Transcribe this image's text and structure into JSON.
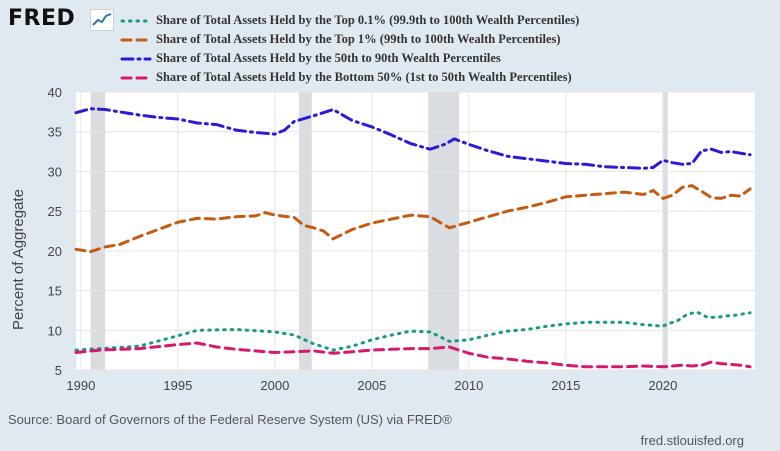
{
  "logo": {
    "text": "FRED",
    "icon": "trend-line-icon"
  },
  "source_text": "Source: Board of Governors of the Federal Reserve System (US) via FRED®",
  "site_text": "fred.stlouisfed.org",
  "chart_data": {
    "type": "line",
    "ylabel": "Percent of Aggregate",
    "xlabel": "",
    "xlim": [
      1989.75,
      2024.75
    ],
    "ylim": [
      5,
      40
    ],
    "yticks": [
      5,
      10,
      15,
      20,
      25,
      30,
      35,
      40
    ],
    "xticks": [
      1990,
      1995,
      2000,
      2005,
      2010,
      2015,
      2020
    ],
    "grid": true,
    "legend_position": "top",
    "recessions": [
      [
        1990.5,
        1991.25
      ],
      [
        2001.25,
        2001.9
      ],
      [
        2007.9,
        2009.5
      ],
      [
        2020.0,
        2020.25
      ]
    ],
    "series": [
      {
        "name": "Share of Total Assets Held by the Top 0.1% (99.9th to 100th Wealth Percentiles)",
        "color": "#1a9a85",
        "style": "dotted",
        "points": [
          [
            1989.75,
            7.5
          ],
          [
            1991,
            7.7
          ],
          [
            1993,
            8.0
          ],
          [
            1995,
            9.3
          ],
          [
            1996,
            10.0
          ],
          [
            1998,
            10.1
          ],
          [
            2000,
            9.8
          ],
          [
            2001,
            9.4
          ],
          [
            2002,
            8.3
          ],
          [
            2003,
            7.5
          ],
          [
            2004,
            8.0
          ],
          [
            2005,
            8.8
          ],
          [
            2006,
            9.4
          ],
          [
            2007,
            9.9
          ],
          [
            2008,
            9.8
          ],
          [
            2009,
            8.6
          ],
          [
            2010,
            8.8
          ],
          [
            2011,
            9.4
          ],
          [
            2012,
            9.9
          ],
          [
            2013,
            10.1
          ],
          [
            2014,
            10.5
          ],
          [
            2015,
            10.8
          ],
          [
            2016,
            11.0
          ],
          [
            2017,
            11.0
          ],
          [
            2018,
            11.0
          ],
          [
            2019,
            10.7
          ],
          [
            2020,
            10.5
          ],
          [
            2020.25,
            10.8
          ],
          [
            2020.75,
            11.2
          ],
          [
            2021.25,
            12.0
          ],
          [
            2021.75,
            12.3
          ],
          [
            2022.25,
            11.7
          ],
          [
            2022.75,
            11.6
          ],
          [
            2023.25,
            11.8
          ],
          [
            2023.75,
            11.9
          ],
          [
            2024.5,
            12.2
          ]
        ]
      },
      {
        "name": "Share of Total Assets Held by the Top 1% (99th to 100th Wealth Percentiles)",
        "color": "#c55a11",
        "style": "dashed",
        "points": [
          [
            1989.75,
            20.2
          ],
          [
            1990.5,
            19.9
          ],
          [
            1991.25,
            20.5
          ],
          [
            1992,
            20.8
          ],
          [
            1993,
            21.8
          ],
          [
            1994,
            22.7
          ],
          [
            1995,
            23.6
          ],
          [
            1996,
            24.1
          ],
          [
            1997,
            24.0
          ],
          [
            1998,
            24.3
          ],
          [
            1999,
            24.4
          ],
          [
            1999.5,
            24.8
          ],
          [
            2000,
            24.5
          ],
          [
            2001,
            24.2
          ],
          [
            2001.5,
            23.2
          ],
          [
            2002,
            22.9
          ],
          [
            2002.5,
            22.5
          ],
          [
            2003,
            21.5
          ],
          [
            2004,
            22.7
          ],
          [
            2005,
            23.5
          ],
          [
            2006,
            24.0
          ],
          [
            2007,
            24.5
          ],
          [
            2008,
            24.3
          ],
          [
            2008.5,
            23.6
          ],
          [
            2009,
            22.9
          ],
          [
            2010,
            23.6
          ],
          [
            2011,
            24.3
          ],
          [
            2012,
            25.0
          ],
          [
            2013,
            25.5
          ],
          [
            2014,
            26.1
          ],
          [
            2015,
            26.8
          ],
          [
            2016,
            27.0
          ],
          [
            2017,
            27.2
          ],
          [
            2018,
            27.4
          ],
          [
            2019,
            27.1
          ],
          [
            2019.5,
            27.6
          ],
          [
            2020,
            26.6
          ],
          [
            2020.5,
            27.0
          ],
          [
            2021,
            28.0
          ],
          [
            2021.5,
            28.2
          ],
          [
            2022,
            27.5
          ],
          [
            2022.5,
            26.7
          ],
          [
            2023,
            26.6
          ],
          [
            2023.5,
            27.0
          ],
          [
            2024,
            26.9
          ],
          [
            2024.5,
            27.8
          ]
        ]
      },
      {
        "name": "Share of Total Assets Held by the 50th to 90th Wealth Percentiles",
        "color": "#2a1bd6",
        "style": "dashdot",
        "points": [
          [
            1989.75,
            37.4
          ],
          [
            1990.5,
            37.9
          ],
          [
            1991.25,
            37.8
          ],
          [
            1992,
            37.5
          ],
          [
            1993,
            37.1
          ],
          [
            1994,
            36.8
          ],
          [
            1995,
            36.6
          ],
          [
            1996,
            36.1
          ],
          [
            1997,
            35.9
          ],
          [
            1998,
            35.2
          ],
          [
            1999,
            34.9
          ],
          [
            2000,
            34.7
          ],
          [
            2000.5,
            35.2
          ],
          [
            2001,
            36.3
          ],
          [
            2002,
            37.0
          ],
          [
            2003,
            37.8
          ],
          [
            2004,
            36.4
          ],
          [
            2005,
            35.6
          ],
          [
            2006,
            34.6
          ],
          [
            2007,
            33.5
          ],
          [
            2008,
            32.8
          ],
          [
            2008.75,
            33.4
          ],
          [
            2009.25,
            34.1
          ],
          [
            2010,
            33.4
          ],
          [
            2011,
            32.6
          ],
          [
            2012,
            31.9
          ],
          [
            2013,
            31.6
          ],
          [
            2014,
            31.3
          ],
          [
            2015,
            31.0
          ],
          [
            2016,
            30.9
          ],
          [
            2017,
            30.6
          ],
          [
            2018,
            30.5
          ],
          [
            2019,
            30.4
          ],
          [
            2019.5,
            30.5
          ],
          [
            2020,
            31.4
          ],
          [
            2020.5,
            31.1
          ],
          [
            2021,
            30.9
          ],
          [
            2021.5,
            31.0
          ],
          [
            2022,
            32.6
          ],
          [
            2022.5,
            32.8
          ],
          [
            2023,
            32.4
          ],
          [
            2023.5,
            32.5
          ],
          [
            2024,
            32.3
          ],
          [
            2024.5,
            32.1
          ]
        ]
      },
      {
        "name": "Share of Total Assets Held by the Bottom 50% (1st to 50th Wealth Percentiles)",
        "color": "#d6196e",
        "style": "dashed",
        "points": [
          [
            1989.75,
            7.2
          ],
          [
            1991,
            7.5
          ],
          [
            1993,
            7.7
          ],
          [
            1995,
            8.2
          ],
          [
            1996,
            8.4
          ],
          [
            1997,
            7.9
          ],
          [
            1998,
            7.6
          ],
          [
            1999,
            7.4
          ],
          [
            2000,
            7.2
          ],
          [
            2001,
            7.3
          ],
          [
            2002,
            7.4
          ],
          [
            2003,
            7.1
          ],
          [
            2004,
            7.3
          ],
          [
            2005,
            7.5
          ],
          [
            2006,
            7.6
          ],
          [
            2007,
            7.7
          ],
          [
            2008,
            7.7
          ],
          [
            2009,
            7.9
          ],
          [
            2010,
            7.1
          ],
          [
            2011,
            6.6
          ],
          [
            2012,
            6.4
          ],
          [
            2013,
            6.1
          ],
          [
            2014,
            5.9
          ],
          [
            2015,
            5.6
          ],
          [
            2016,
            5.4
          ],
          [
            2017,
            5.4
          ],
          [
            2018,
            5.4
          ],
          [
            2019,
            5.5
          ],
          [
            2020,
            5.4
          ],
          [
            2021,
            5.6
          ],
          [
            2021.5,
            5.5
          ],
          [
            2022,
            5.6
          ],
          [
            2022.5,
            6.0
          ],
          [
            2023,
            5.8
          ],
          [
            2024,
            5.6
          ],
          [
            2024.5,
            5.4
          ]
        ]
      }
    ]
  }
}
